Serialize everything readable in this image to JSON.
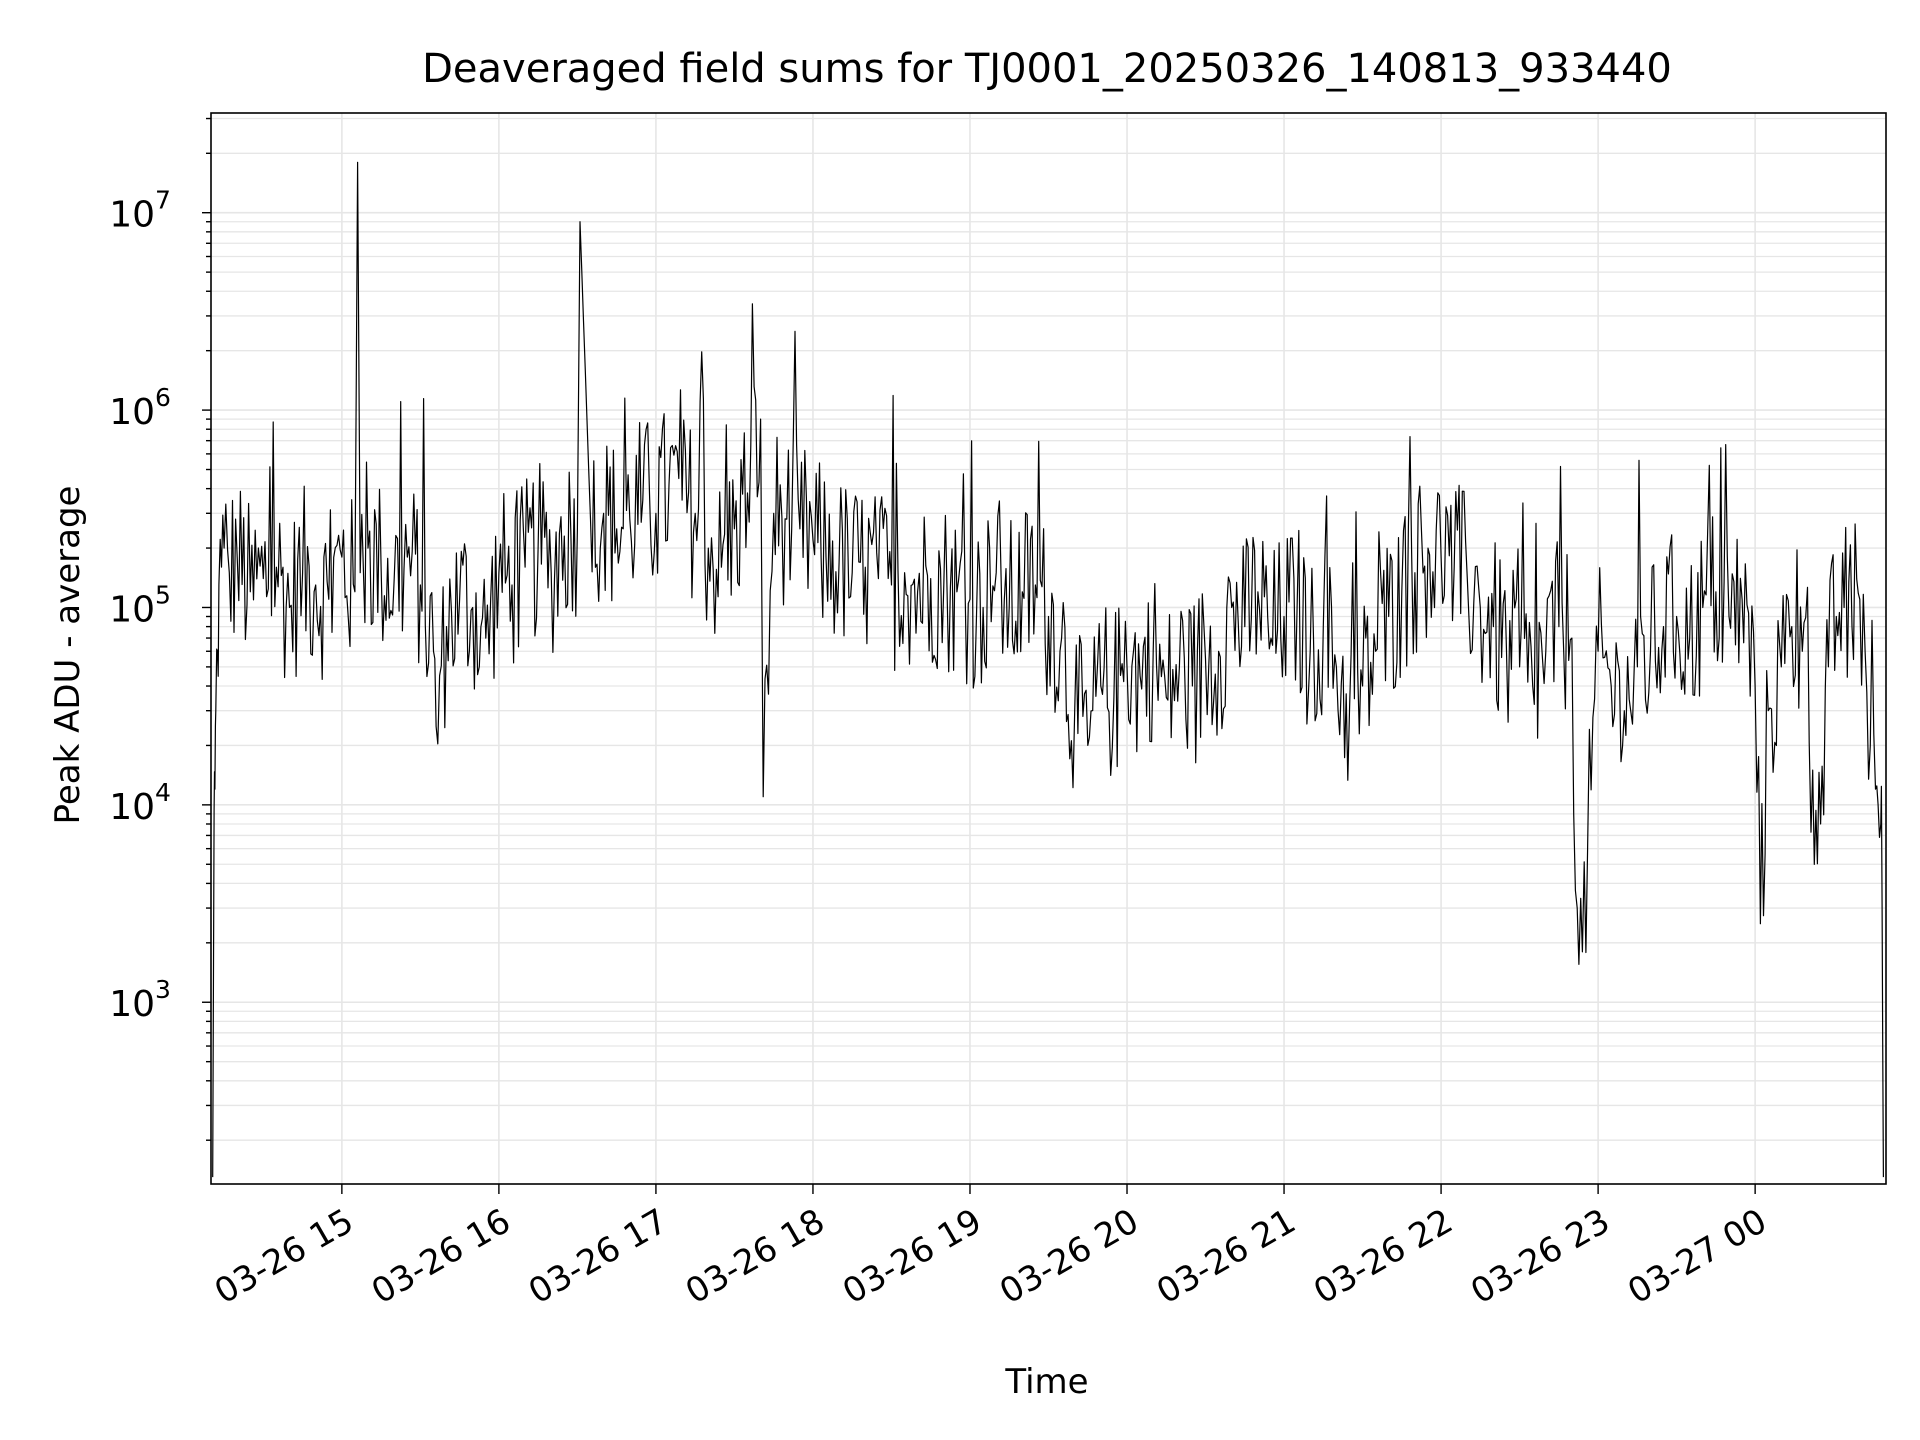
{
  "chart_data": {
    "type": "line",
    "title": "Deaveraged field sums for TJ0001_20250326_140813_933440",
    "xlabel": "Time",
    "ylabel": "Peak ADU - average",
    "y_scale": "log",
    "ylim": [
      120,
      32000000
    ],
    "xlim": [
      "2025-03-26 14:10",
      "2025-03-27 00:50"
    ],
    "grid": true,
    "line_color": "#000000",
    "grid_color": "#e6e6e6",
    "x_ticks": [
      {
        "value": "2025-03-26 15:00",
        "label": "03-26 15"
      },
      {
        "value": "2025-03-26 16:00",
        "label": "03-26 16"
      },
      {
        "value": "2025-03-26 17:00",
        "label": "03-26 17"
      },
      {
        "value": "2025-03-26 18:00",
        "label": "03-26 18"
      },
      {
        "value": "2025-03-26 19:00",
        "label": "03-26 19"
      },
      {
        "value": "2025-03-26 20:00",
        "label": "03-26 20"
      },
      {
        "value": "2025-03-26 21:00",
        "label": "03-26 21"
      },
      {
        "value": "2025-03-26 22:00",
        "label": "03-26 22"
      },
      {
        "value": "2025-03-26 23:00",
        "label": "03-26 23"
      },
      {
        "value": "2025-03-27 00:00",
        "label": "03-27 00"
      }
    ],
    "y_ticks": [
      {
        "value": 1000,
        "label": "10",
        "exp": "3"
      },
      {
        "value": 10000,
        "label": "10",
        "exp": "4"
      },
      {
        "value": 100000,
        "label": "10",
        "exp": "5"
      },
      {
        "value": 1000000,
        "label": "10",
        "exp": "6"
      },
      {
        "value": 10000000,
        "label": "10",
        "exp": "7"
      }
    ],
    "series": [
      {
        "x": [
          "2025-03-26 14:10:40",
          "2025-03-26 14:11:10",
          "2025-03-26 14:11:30",
          "2025-03-26 14:11:50",
          "2025-03-26 14:12:30",
          "2025-03-26 14:13:00",
          "2025-03-26 14:14:00",
          "2025-03-26 14:15:00",
          "2025-03-26 14:17:00",
          "2025-03-26 14:20:00",
          "2025-03-26 14:25:00",
          "2025-03-26 14:30:00",
          "2025-03-26 14:35:00",
          "2025-03-26 14:40:00",
          "2025-03-26 14:45:00",
          "2025-03-26 14:50:00",
          "2025-03-26 14:55:00",
          "2025-03-26 15:00:00",
          "2025-03-26 15:05:00",
          "2025-03-26 15:06:00",
          "2025-03-26 15:07:00",
          "2025-03-26 15:10:00",
          "2025-03-26 15:15:00",
          "2025-03-26 15:20:00",
          "2025-03-26 15:25:00",
          "2025-03-26 15:30:00",
          "2025-03-26 15:35:00",
          "2025-03-26 15:36:00",
          "2025-03-26 15:40:00",
          "2025-03-26 15:45:00",
          "2025-03-26 15:50:00",
          "2025-03-26 15:55:00",
          "2025-03-26 16:00:00",
          "2025-03-26 16:05:00",
          "2025-03-26 16:10:00",
          "2025-03-26 16:15:00",
          "2025-03-26 16:20:00",
          "2025-03-26 16:25:00",
          "2025-03-26 16:30:00",
          "2025-03-26 16:31:00",
          "2025-03-26 16:35:00",
          "2025-03-26 16:40:00",
          "2025-03-26 16:45:00",
          "2025-03-26 16:50:00",
          "2025-03-26 16:55:00",
          "2025-03-26 17:00:00",
          "2025-03-26 17:05:00",
          "2025-03-26 17:10:00",
          "2025-03-26 17:15:00",
          "2025-03-26 17:20:00",
          "2025-03-26 17:25:00",
          "2025-03-26 17:30:00",
          "2025-03-26 17:35:00",
          "2025-03-26 17:40:00",
          "2025-03-26 17:41:00",
          "2025-03-26 17:45:00",
          "2025-03-26 17:50:00",
          "2025-03-26 17:55:00",
          "2025-03-26 18:00:00",
          "2025-03-26 18:05:00",
          "2025-03-26 18:10:00",
          "2025-03-26 18:15:00",
          "2025-03-26 18:20:00",
          "2025-03-26 18:25:00",
          "2025-03-26 18:30:00",
          "2025-03-26 18:35:00",
          "2025-03-26 18:40:00",
          "2025-03-26 18:45:00",
          "2025-03-26 18:50:00",
          "2025-03-26 18:55:00",
          "2025-03-26 19:00:00",
          "2025-03-26 19:05:00",
          "2025-03-26 19:10:00",
          "2025-03-26 19:15:00",
          "2025-03-26 19:20:00",
          "2025-03-26 19:25:00",
          "2025-03-26 19:30:00",
          "2025-03-26 19:35:00",
          "2025-03-26 19:40:00",
          "2025-03-26 19:45:00",
          "2025-03-26 19:50:00",
          "2025-03-26 19:55:00",
          "2025-03-26 20:00:00",
          "2025-03-26 20:05:00",
          "2025-03-26 20:10:00",
          "2025-03-26 20:15:00",
          "2025-03-26 20:20:00",
          "2025-03-26 20:25:00",
          "2025-03-26 20:30:00",
          "2025-03-26 20:35:00",
          "2025-03-26 20:40:00",
          "2025-03-26 20:45:00",
          "2025-03-26 20:50:00",
          "2025-03-26 20:55:00",
          "2025-03-26 21:00:00",
          "2025-03-26 21:05:00",
          "2025-03-26 21:10:00",
          "2025-03-26 21:15:00",
          "2025-03-26 21:20:00",
          "2025-03-26 21:25:00",
          "2025-03-26 21:30:00",
          "2025-03-26 21:35:00",
          "2025-03-26 21:40:00",
          "2025-03-26 21:45:00",
          "2025-03-26 21:50:00",
          "2025-03-26 21:55:00",
          "2025-03-26 22:00:00",
          "2025-03-26 22:05:00",
          "2025-03-26 22:10:00",
          "2025-03-26 22:15:00",
          "2025-03-26 22:20:00",
          "2025-03-26 22:25:00",
          "2025-03-26 22:30:00",
          "2025-03-26 22:35:00",
          "2025-03-26 22:40:00",
          "2025-03-26 22:45:00",
          "2025-03-26 22:50:00",
          "2025-03-26 22:52:00",
          "2025-03-26 22:54:00",
          "2025-03-26 22:56:00",
          "2025-03-26 23:00:00",
          "2025-03-26 23:05:00",
          "2025-03-26 23:10:00",
          "2025-03-26 23:15:00",
          "2025-03-26 23:20:00",
          "2025-03-26 23:25:00",
          "2025-03-26 23:30:00",
          "2025-03-26 23:35:00",
          "2025-03-26 23:40:00",
          "2025-03-26 23:45:00",
          "2025-03-26 23:50:00",
          "2025-03-26 23:55:00",
          "2025-03-27 00:00:00",
          "2025-03-27 00:02:00",
          "2025-03-27 00:05:00",
          "2025-03-27 00:10:00",
          "2025-03-27 00:14:00",
          "2025-03-27 00:18:00",
          "2025-03-27 00:22:00",
          "2025-03-27 00:25:00",
          "2025-03-27 00:28:00",
          "2025-03-27 00:31:00",
          "2025-03-27 00:34:00",
          "2025-03-27 00:37:00",
          "2025-03-27 00:40:00",
          "2025-03-27 00:42:00",
          "2025-03-27 00:44:00",
          "2025-03-27 00:46:00",
          "2025-03-27 00:47:00",
          "2025-03-27 00:48:00",
          "2025-03-27 00:48:30",
          "2025-03-27 00:49:00"
        ],
        "y": [
          130,
          9500,
          12000,
          30000,
          60000,
          130000,
          160000,
          200000,
          150000,
          180000,
          120000,
          140000,
          160000,
          100000,
          150000,
          130000,
          110000,
          180000,
          120000,
          18000000,
          150000,
          200000,
          160000,
          140000,
          180000,
          130000,
          60000,
          25000,
          80000,
          110000,
          100000,
          70000,
          150000,
          130000,
          160000,
          200000,
          150000,
          230000,
          250000,
          9000000,
          280000,
          300000,
          250000,
          280000,
          350000,
          300000,
          420000,
          350000,
          300000,
          200000,
          160000,
          250000,
          380000,
          900000,
          11000,
          300000,
          280000,
          250000,
          220000,
          180000,
          170000,
          150000,
          160000,
          140000,
          130000,
          150000,
          120000,
          140000,
          130000,
          120000,
          110000,
          100000,
          150000,
          100000,
          120000,
          130000,
          90000,
          70000,
          30000,
          20000,
          40000,
          35000,
          50000,
          45000,
          60000,
          35000,
          50000,
          40000,
          55000,
          60000,
          100000,
          80000,
          120000,
          70000,
          90000,
          100000,
          60000,
          80000,
          50000,
          30000,
          40000,
          60000,
          90000,
          120000,
          150000,
          200000,
          180000,
          160000,
          140000,
          100000,
          80000,
          60000,
          50000,
          40000,
          60000,
          80000,
          70000,
          3000,
          1800,
          6000,
          60000,
          40000,
          30000,
          50000,
          60000,
          80000,
          90000,
          70000,
          100000,
          120000,
          90000,
          110000,
          40000,
          2500,
          30000,
          50000,
          80000,
          60000,
          15000,
          8000,
          50000,
          90000,
          100000,
          80000,
          110000,
          60000,
          20000,
          12000,
          10000,
          8000,
          3000,
          130
        ]
      }
    ]
  }
}
